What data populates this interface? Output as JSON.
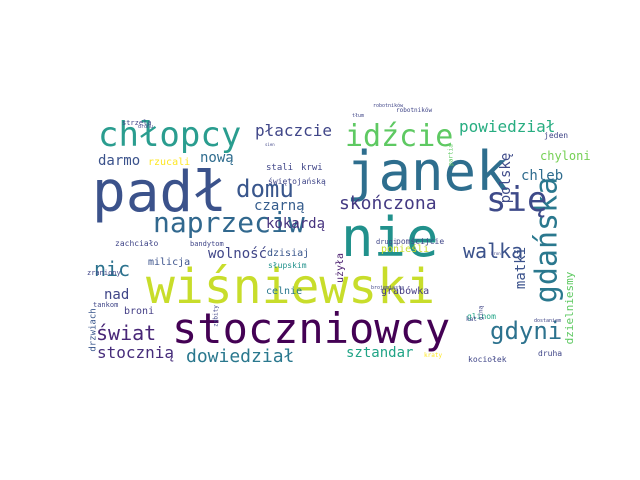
{
  "words": [
    {
      "text": "wiśniewski",
      "color": "#c8dd2b",
      "vertical": false
    },
    {
      "text": "janek",
      "color": "#2e6e8e",
      "vertical": false
    },
    {
      "text": "stoczniowcy",
      "color": "#440154",
      "vertical": false
    },
    {
      "text": "padł",
      "color": "#3b528b",
      "vertical": false
    },
    {
      "text": "nie",
      "color": "#21918c",
      "vertical": false
    },
    {
      "text": "chłopcy",
      "color": "#2a9d8f",
      "vertical": false
    },
    {
      "text": "gdańska",
      "color": "#2a788e",
      "vertical": true
    },
    {
      "text": "idźcie",
      "color": "#5ec962",
      "vertical": false
    },
    {
      "text": "naprzeciw",
      "color": "#31688e",
      "vertical": false
    },
    {
      "text": "się",
      "color": "#3e4a89",
      "vertical": false
    },
    {
      "text": "domu",
      "color": "#39568c",
      "vertical": false
    },
    {
      "text": "gdyni",
      "color": "#2c728e",
      "vertical": false
    },
    {
      "text": "skończona",
      "color": "#443a83",
      "vertical": false
    },
    {
      "text": "dowiedział",
      "color": "#2a788e",
      "vertical": false
    },
    {
      "text": "świat",
      "color": "#482677",
      "vertical": false
    },
    {
      "text": "walka",
      "color": "#3b528b",
      "vertical": false
    },
    {
      "text": "nic",
      "color": "#2c728e",
      "vertical": false
    },
    {
      "text": "stocznią",
      "color": "#472d7b",
      "vertical": false
    },
    {
      "text": "powiedział",
      "color": "#27ad81",
      "vertical": false
    },
    {
      "text": "płaczcie",
      "color": "#404688",
      "vertical": false
    },
    {
      "text": "sztandar",
      "color": "#20a486",
      "vertical": false
    },
    {
      "text": "kokardą",
      "color": "#46327e",
      "vertical": false
    },
    {
      "text": "czarną",
      "color": "#365d8d",
      "vertical": false
    },
    {
      "text": "wolność",
      "color": "#404688",
      "vertical": false
    },
    {
      "text": "matki",
      "color": "#3b528b",
      "vertical": true
    },
    {
      "text": "chleb",
      "color": "#2f6c8e",
      "vertical": false
    },
    {
      "text": "darmo",
      "color": "#3b528b",
      "vertical": false
    },
    {
      "text": "nową",
      "color": "#2f6c8e",
      "vertical": false
    },
    {
      "text": "nad",
      "color": "#404688",
      "vertical": false
    },
    {
      "text": "polskę",
      "color": "#3e4a89",
      "vertical": true
    },
    {
      "text": "dzielniesmy",
      "color": "#5ec962",
      "vertical": true
    },
    {
      "text": "chyloni",
      "color": "#75d054",
      "vertical": false
    },
    {
      "text": "rzucali",
      "color": "#fde725",
      "vertical": false
    },
    {
      "text": "milicja",
      "color": "#3b528b",
      "vertical": false
    },
    {
      "text": "dzisiaj",
      "color": "#39568c",
      "vertical": false
    },
    {
      "text": "celnie",
      "color": "#2a788e",
      "vertical": false
    },
    {
      "text": "grabówka",
      "color": "#443a83",
      "vertical": false
    },
    {
      "text": "ponieśli",
      "color": "#c8dd2b",
      "vertical": false
    },
    {
      "text": "użyła",
      "color": "#481c6e",
      "vertical": true
    },
    {
      "text": "broni",
      "color": "#433e85",
      "vertical": false
    },
    {
      "text": "drzwiach",
      "color": "#39568c",
      "vertical": true
    },
    {
      "text": "stali",
      "color": "#404688",
      "vertical": false
    },
    {
      "text": "krwi",
      "color": "#404688",
      "vertical": false
    },
    {
      "text": "świętojańską",
      "color": "#404688",
      "vertical": false
    },
    {
      "text": "pomścijcie",
      "color": "#404688",
      "vertical": false
    },
    {
      "text": "drugi",
      "color": "#404688",
      "vertical": false
    },
    {
      "text": "słupskim",
      "color": "#21918c",
      "vertical": false
    },
    {
      "text": "zachciało",
      "color": "#404688",
      "vertical": false
    },
    {
      "text": "bandytom",
      "color": "#404688",
      "vertical": false
    },
    {
      "text": "zraniony",
      "color": "#404688",
      "vertical": false
    },
    {
      "text": "tankom",
      "color": "#404688",
      "vertical": false
    },
    {
      "text": "glinom",
      "color": "#20a486",
      "vertical": false
    },
    {
      "text": "kociołek",
      "color": "#404688",
      "vertical": false
    },
    {
      "text": "druha",
      "color": "#404688",
      "vertical": false
    },
    {
      "text": "jeden",
      "color": "#404688",
      "vertical": false
    },
    {
      "text": "robotników",
      "color": "#404688",
      "vertical": false
    },
    {
      "text": "strzela",
      "color": "#404688",
      "vertical": false
    },
    {
      "text": "zabity",
      "color": "#404688",
      "vertical": true
    },
    {
      "text": "partia",
      "color": "#5ec962",
      "vertical": true
    },
    {
      "text": "kat",
      "color": "#404688",
      "vertical": false
    },
    {
      "text": "giną",
      "color": "#404688",
      "vertical": true
    },
    {
      "text": "brojemiasta",
      "color": "#404688",
      "vertical": false
    },
    {
      "text": "dostaniem",
      "color": "#404688",
      "vertical": false
    },
    {
      "text": "kraty",
      "color": "#fde725",
      "vertical": false
    },
    {
      "text": "tłum",
      "color": "#404688",
      "vertical": false
    },
    {
      "text": "sien",
      "color": "#404688",
      "vertical": false
    },
    {
      "text": "bron",
      "color": "#404688",
      "vertical": false
    },
    {
      "text": "dronu",
      "color": "#404688",
      "vertical": false
    },
    {
      "text": "robotników",
      "color": "#404688",
      "vertical": false
    }
  ]
}
